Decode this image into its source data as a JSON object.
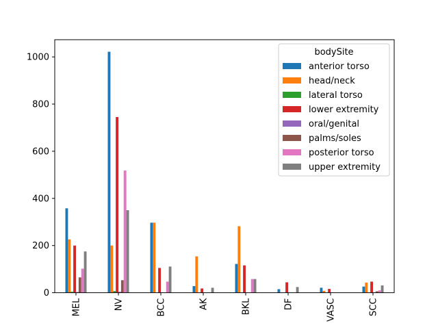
{
  "chart_data": {
    "type": "bar",
    "categories": [
      "MEL",
      "NV",
      "BCC",
      "AK",
      "BKL",
      "DF",
      "VASC",
      "SCC"
    ],
    "series": [
      {
        "name": "anterior torso",
        "color": "#1f77b4",
        "values": [
          358,
          1022,
          297,
          28,
          122,
          15,
          21,
          26
        ]
      },
      {
        "name": "head/neck",
        "color": "#ff7f0e",
        "values": [
          226,
          200,
          297,
          154,
          282,
          0,
          8,
          43
        ]
      },
      {
        "name": "lateral torso",
        "color": "#2ca02c",
        "values": [
          4,
          7,
          0,
          0,
          0,
          0,
          0,
          0
        ]
      },
      {
        "name": "lower extremity",
        "color": "#d62728",
        "values": [
          200,
          745,
          105,
          18,
          116,
          44,
          16,
          47
        ]
      },
      {
        "name": "oral/genital",
        "color": "#9467bd",
        "values": [
          3,
          4,
          0,
          0,
          0,
          0,
          0,
          0
        ]
      },
      {
        "name": "palms/soles",
        "color": "#8c564b",
        "values": [
          65,
          53,
          0,
          0,
          0,
          0,
          0,
          6
        ]
      },
      {
        "name": "posterior torso",
        "color": "#e377c2",
        "values": [
          102,
          518,
          47,
          0,
          58,
          0,
          0,
          10
        ]
      },
      {
        "name": "upper extremity",
        "color": "#7f7f7f",
        "values": [
          175,
          350,
          111,
          21,
          58,
          24,
          0,
          31
        ]
      }
    ],
    "yticks": [
      0,
      200,
      400,
      600,
      800,
      1000
    ],
    "ylim": [
      0,
      1073
    ],
    "legend": {
      "title": "bodySite",
      "placement": "upper right"
    },
    "grid": false
  }
}
